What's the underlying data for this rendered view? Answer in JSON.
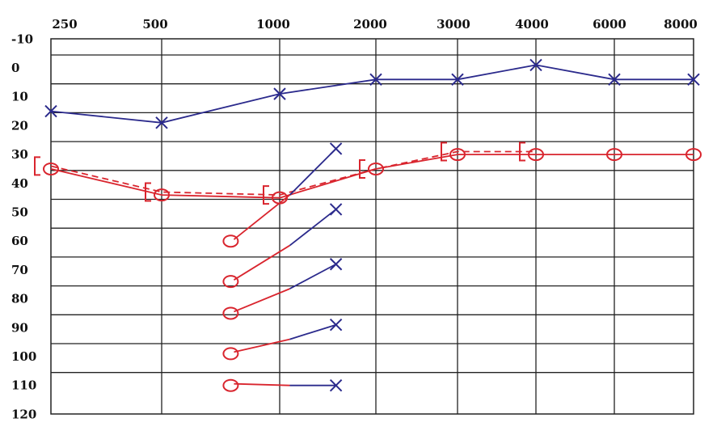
{
  "chart_data": {
    "type": "line",
    "title": "",
    "xlabel": "",
    "ylabel": "",
    "x_ticks": [
      "250",
      "500",
      "1000",
      "2000",
      "3000",
      "4000",
      "6000",
      "8000"
    ],
    "y_ticks": [
      "-10",
      "0",
      "10",
      "20",
      "30",
      "40",
      "50",
      "60",
      "70",
      "80",
      "90",
      "100",
      "110",
      "120"
    ],
    "ylim": [
      -10,
      120
    ],
    "y_inverted": true,
    "grid": true,
    "legend": "none",
    "series": [
      {
        "marker": "x",
        "color": "#2b2a8c",
        "points": [
          [
            "250",
            15
          ],
          [
            "500",
            19
          ],
          [
            "1000",
            9
          ],
          [
            "2000",
            4
          ],
          [
            "3000",
            4
          ],
          [
            "4000",
            -1
          ],
          [
            "6000",
            4
          ],
          [
            "8000",
            4
          ]
        ]
      },
      {
        "marker": "o",
        "color": "#d9252e",
        "points": [
          [
            "250",
            35
          ],
          [
            "500",
            44
          ],
          [
            "1000",
            45
          ],
          [
            "2000",
            35
          ],
          [
            "3000",
            30
          ],
          [
            "4000",
            30
          ],
          [
            "6000",
            30
          ],
          [
            "8000",
            30
          ]
        ]
      },
      {
        "marker": "[",
        "color": "#d9252e",
        "dashed": true,
        "points": [
          [
            "250",
            34
          ],
          [
            "500",
            43
          ],
          [
            "1000",
            44
          ],
          [
            "2000",
            35
          ],
          [
            "3000",
            29
          ],
          [
            "4000",
            29
          ]
        ]
      },
      {
        "marker": "o-x",
        "color": "#d9252e",
        "color2": "#2b2a8c",
        "points": [
          [
            "750",
            60
          ],
          [
            "1500",
            28
          ]
        ]
      },
      {
        "marker": "o-x",
        "color": "#d9252e",
        "color2": "#2b2a8c",
        "points": [
          [
            "750",
            74
          ],
          [
            "1500",
            49
          ]
        ]
      },
      {
        "marker": "o-x",
        "color": "#d9252e",
        "color2": "#2b2a8c",
        "points": [
          [
            "750",
            85
          ],
          [
            "1500",
            68
          ]
        ]
      },
      {
        "marker": "o-x",
        "color": "#d9252e",
        "color2": "#2b2a8c",
        "points": [
          [
            "750",
            99
          ],
          [
            "1500",
            89
          ]
        ]
      },
      {
        "marker": "o-x",
        "color": "#d9252e",
        "color2": "#2b2a8c",
        "points": [
          [
            "750",
            110
          ],
          [
            "1500",
            110
          ]
        ]
      }
    ]
  }
}
